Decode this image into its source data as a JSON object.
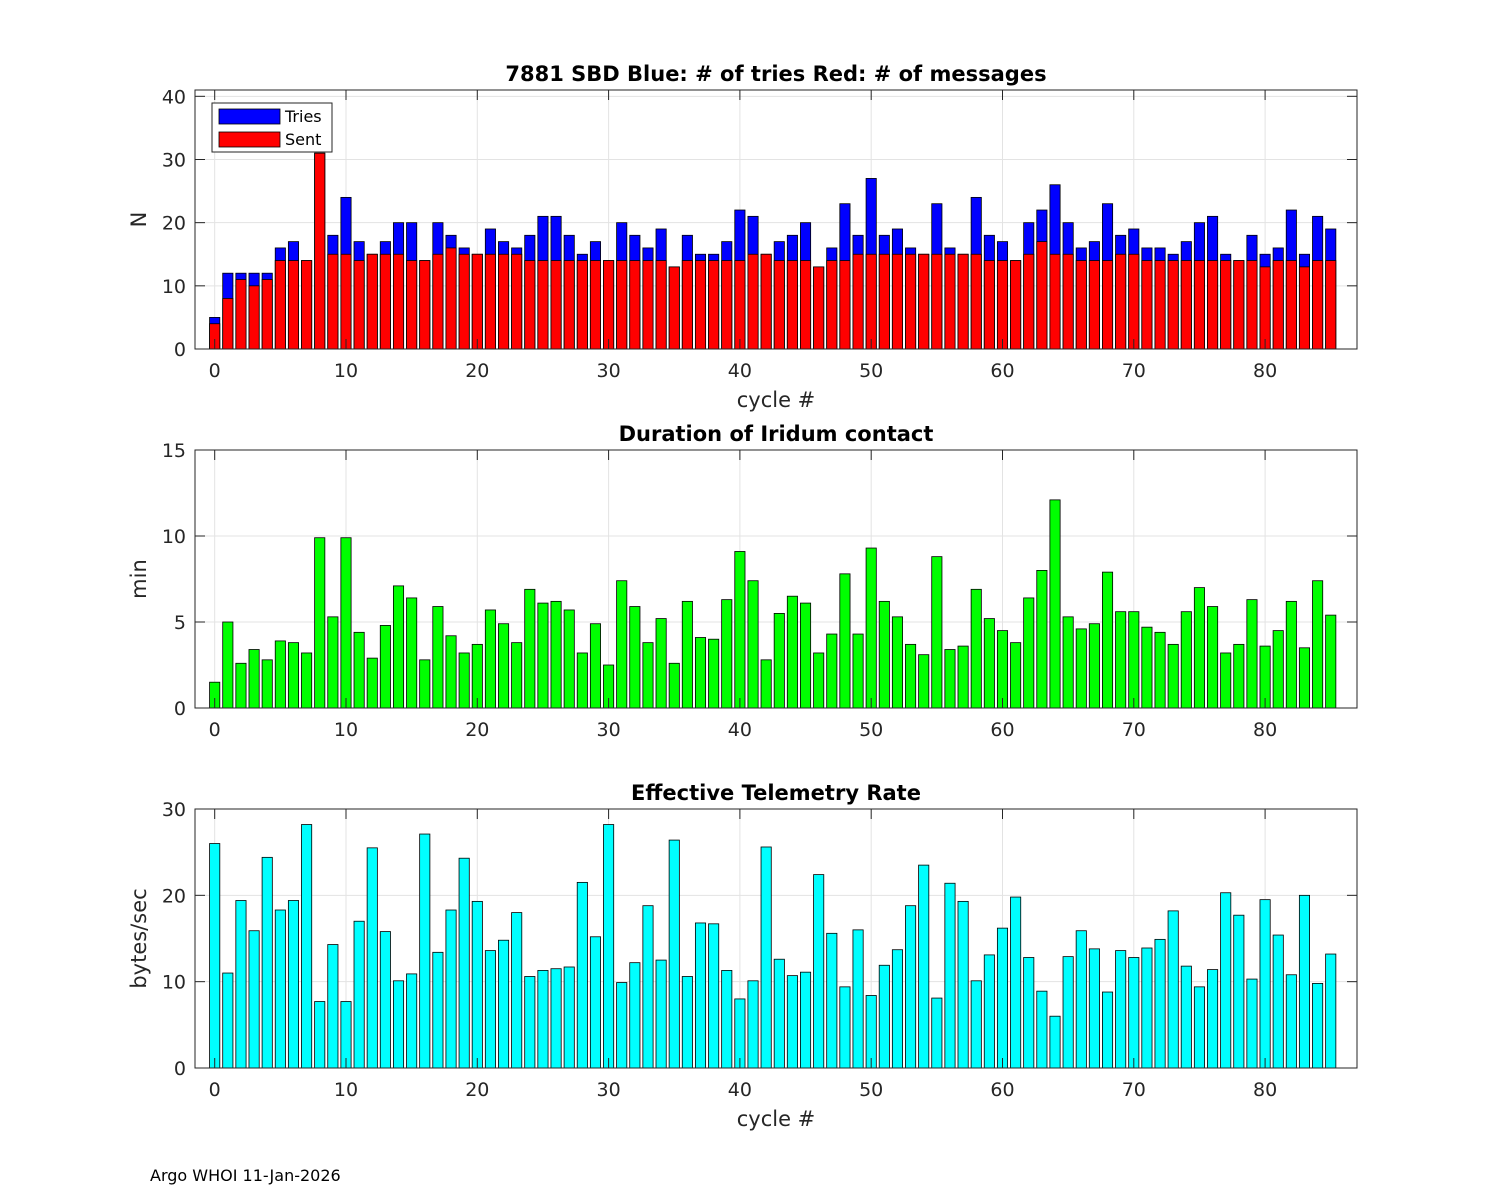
{
  "footer": {
    "text": "Argo WHOI 11-Jan-2026"
  },
  "chart_data": [
    {
      "type": "bar",
      "layout": "overlaid",
      "title": "7881 SBD  Blue: # of tries   Red: # of messages",
      "xlabel": "cycle #",
      "ylabel": "N",
      "xlim": [
        -1.5,
        87
      ],
      "ylim": [
        0,
        41
      ],
      "xticks": [
        0,
        10,
        20,
        30,
        40,
        50,
        60,
        70,
        80
      ],
      "yticks": [
        0,
        10,
        20,
        30,
        40
      ],
      "grid": true,
      "legend_location": "top-left",
      "x": [
        0,
        1,
        2,
        3,
        4,
        5,
        6,
        7,
        8,
        9,
        10,
        11,
        12,
        13,
        14,
        15,
        16,
        17,
        18,
        19,
        20,
        21,
        22,
        23,
        24,
        25,
        26,
        27,
        28,
        29,
        30,
        31,
        32,
        33,
        34,
        35,
        36,
        37,
        38,
        39,
        40,
        41,
        42,
        43,
        44,
        45,
        46,
        47,
        48,
        49,
        50,
        51,
        52,
        53,
        54,
        55,
        56,
        57,
        58,
        59,
        60,
        61,
        62,
        63,
        64,
        65,
        66,
        67,
        68,
        69,
        70,
        71,
        72,
        73,
        74,
        75,
        76,
        77,
        78,
        79,
        80,
        81,
        82,
        83,
        84,
        85
      ],
      "series": [
        {
          "name": "Tries",
          "color": "#0000ff",
          "values": [
            5,
            12,
            12,
            12,
            12,
            16,
            17,
            14,
            31,
            18,
            24,
            17,
            15,
            17,
            20,
            20,
            14,
            20,
            18,
            16,
            15,
            19,
            17,
            16,
            18,
            21,
            21,
            18,
            15,
            17,
            14,
            20,
            18,
            16,
            19,
            13,
            18,
            15,
            15,
            17,
            22,
            21,
            15,
            17,
            18,
            20,
            13,
            16,
            23,
            18,
            27,
            18,
            19,
            16,
            15,
            23,
            16,
            15,
            24,
            18,
            17,
            14,
            20,
            22,
            26,
            20,
            16,
            17,
            23,
            18,
            19,
            16,
            16,
            15,
            17,
            20,
            21,
            15,
            14,
            18,
            15,
            16,
            22,
            15,
            21,
            19
          ]
        },
        {
          "name": "Sent",
          "color": "#ff0000",
          "values": [
            4,
            8,
            11,
            10,
            11,
            14,
            14,
            14,
            31,
            15,
            15,
            14,
            15,
            15,
            15,
            14,
            14,
            15,
            16,
            15,
            15,
            15,
            15,
            15,
            14,
            14,
            14,
            14,
            14,
            14,
            14,
            14,
            14,
            14,
            14,
            13,
            14,
            14,
            14,
            14,
            14,
            15,
            15,
            14,
            14,
            14,
            13,
            14,
            14,
            15,
            15,
            15,
            15,
            15,
            15,
            15,
            15,
            15,
            15,
            14,
            14,
            14,
            15,
            17,
            15,
            15,
            14,
            14,
            14,
            15,
            15,
            14,
            14,
            14,
            14,
            14,
            14,
            14,
            14,
            14,
            13,
            14,
            14,
            13,
            14,
            14
          ]
        }
      ]
    },
    {
      "type": "bar",
      "title": "Duration of Iridum contact",
      "xlabel": "",
      "ylabel": "min",
      "xlim": [
        -1.5,
        87
      ],
      "ylim": [
        0,
        15
      ],
      "xticks": [
        0,
        10,
        20,
        30,
        40,
        50,
        60,
        70,
        80
      ],
      "yticks": [
        0,
        5,
        10,
        15
      ],
      "grid": true,
      "color": "#00ff00",
      "x": [
        0,
        1,
        2,
        3,
        4,
        5,
        6,
        7,
        8,
        9,
        10,
        11,
        12,
        13,
        14,
        15,
        16,
        17,
        18,
        19,
        20,
        21,
        22,
        23,
        24,
        25,
        26,
        27,
        28,
        29,
        30,
        31,
        32,
        33,
        34,
        35,
        36,
        37,
        38,
        39,
        40,
        41,
        42,
        43,
        44,
        45,
        46,
        47,
        48,
        49,
        50,
        51,
        52,
        53,
        54,
        55,
        56,
        57,
        58,
        59,
        60,
        61,
        62,
        63,
        64,
        65,
        66,
        67,
        68,
        69,
        70,
        71,
        72,
        73,
        74,
        75,
        76,
        77,
        78,
        79,
        80,
        81,
        82,
        83,
        84,
        85
      ],
      "values": [
        1.5,
        5.0,
        2.6,
        3.4,
        2.8,
        3.9,
        3.8,
        3.2,
        9.9,
        5.3,
        9.9,
        4.4,
        2.9,
        4.8,
        7.1,
        6.4,
        2.8,
        5.9,
        4.2,
        3.2,
        3.7,
        5.7,
        4.9,
        3.8,
        6.9,
        6.1,
        6.2,
        5.7,
        3.2,
        4.9,
        2.5,
        7.4,
        5.9,
        3.8,
        5.2,
        2.6,
        6.2,
        4.1,
        4.0,
        6.3,
        9.1,
        7.4,
        2.8,
        5.5,
        6.5,
        6.1,
        3.2,
        4.3,
        7.8,
        4.3,
        9.3,
        6.2,
        5.3,
        3.7,
        3.1,
        8.8,
        3.4,
        3.6,
        6.9,
        5.2,
        4.5,
        3.8,
        6.4,
        8.0,
        12.1,
        5.3,
        4.6,
        4.9,
        7.9,
        5.6,
        5.6,
        4.7,
        4.4,
        3.7,
        5.6,
        7.0,
        5.9,
        3.2,
        3.7,
        6.3,
        3.6,
        4.5,
        6.2,
        3.5,
        7.4,
        5.4
      ]
    },
    {
      "type": "bar",
      "title": "Effective Telemetry Rate",
      "xlabel": "cycle #",
      "ylabel": "bytes/sec",
      "xlim": [
        -1.5,
        87
      ],
      "ylim": [
        0,
        30
      ],
      "xticks": [
        0,
        10,
        20,
        30,
        40,
        50,
        60,
        70,
        80
      ],
      "yticks": [
        0,
        10,
        20,
        30
      ],
      "grid": true,
      "color": "#00ffff",
      "x": [
        0,
        1,
        2,
        3,
        4,
        5,
        6,
        7,
        8,
        9,
        10,
        11,
        12,
        13,
        14,
        15,
        16,
        17,
        18,
        19,
        20,
        21,
        22,
        23,
        24,
        25,
        26,
        27,
        28,
        29,
        30,
        31,
        32,
        33,
        34,
        35,
        36,
        37,
        38,
        39,
        40,
        41,
        42,
        43,
        44,
        45,
        46,
        47,
        48,
        49,
        50,
        51,
        52,
        53,
        54,
        55,
        56,
        57,
        58,
        59,
        60,
        61,
        62,
        63,
        64,
        65,
        66,
        67,
        68,
        69,
        70,
        71,
        72,
        73,
        74,
        75,
        76,
        77,
        78,
        79,
        80,
        81,
        82,
        83,
        84,
        85
      ],
      "values": [
        26.0,
        11.0,
        19.4,
        15.9,
        24.4,
        18.3,
        19.4,
        28.2,
        7.7,
        14.3,
        7.7,
        17.0,
        25.5,
        15.8,
        10.1,
        10.9,
        27.1,
        13.4,
        18.3,
        24.3,
        19.3,
        13.6,
        14.8,
        18.0,
        10.6,
        11.3,
        11.5,
        11.7,
        21.5,
        15.2,
        28.2,
        9.9,
        12.2,
        18.8,
        12.5,
        26.4,
        10.6,
        16.8,
        16.7,
        11.3,
        8.0,
        10.1,
        25.6,
        12.6,
        10.7,
        11.1,
        22.4,
        15.6,
        9.4,
        16.0,
        8.4,
        11.9,
        13.7,
        18.8,
        23.5,
        8.1,
        21.4,
        19.3,
        10.1,
        13.1,
        16.2,
        19.8,
        12.8,
        8.9,
        6.0,
        12.9,
        15.9,
        13.8,
        8.8,
        13.6,
        12.8,
        13.9,
        14.9,
        18.2,
        11.8,
        9.4,
        11.4,
        20.3,
        17.7,
        10.3,
        19.5,
        15.4,
        10.8,
        20.0,
        9.8,
        13.2
      ]
    }
  ]
}
